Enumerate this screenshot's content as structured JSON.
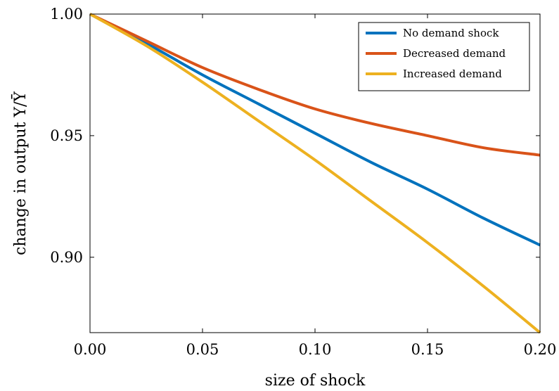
{
  "chart_data": {
    "type": "line",
    "xlabel": "size of shock",
    "ylabel": "change in output Y/Ȳ",
    "xlim": [
      0.0,
      0.2
    ],
    "ylim": [
      0.869,
      1.0
    ],
    "x_ticks": [
      "0.00",
      "0.05",
      "0.10",
      "0.15",
      "0.20"
    ],
    "y_ticks": [
      "0.90",
      "0.95",
      "1.00"
    ],
    "grid": false,
    "legend_position": "top-right",
    "x": [
      0.0,
      0.025,
      0.05,
      0.075,
      0.1,
      0.125,
      0.15,
      0.175,
      0.2
    ],
    "series": [
      {
        "name": "No demand shock",
        "color": "#0072BD",
        "values": [
          1.0,
          0.988,
          0.975,
          0.963,
          0.951,
          0.939,
          0.928,
          0.916,
          0.905
        ]
      },
      {
        "name": "Decreased demand",
        "color": "#D95319",
        "values": [
          1.0,
          0.989,
          0.978,
          0.969,
          0.961,
          0.955,
          0.95,
          0.945,
          0.942
        ]
      },
      {
        "name": "Increased demand",
        "color": "#EDB120",
        "values": [
          1.0,
          0.987,
          0.972,
          0.956,
          0.94,
          0.923,
          0.906,
          0.888,
          0.869
        ]
      }
    ]
  }
}
